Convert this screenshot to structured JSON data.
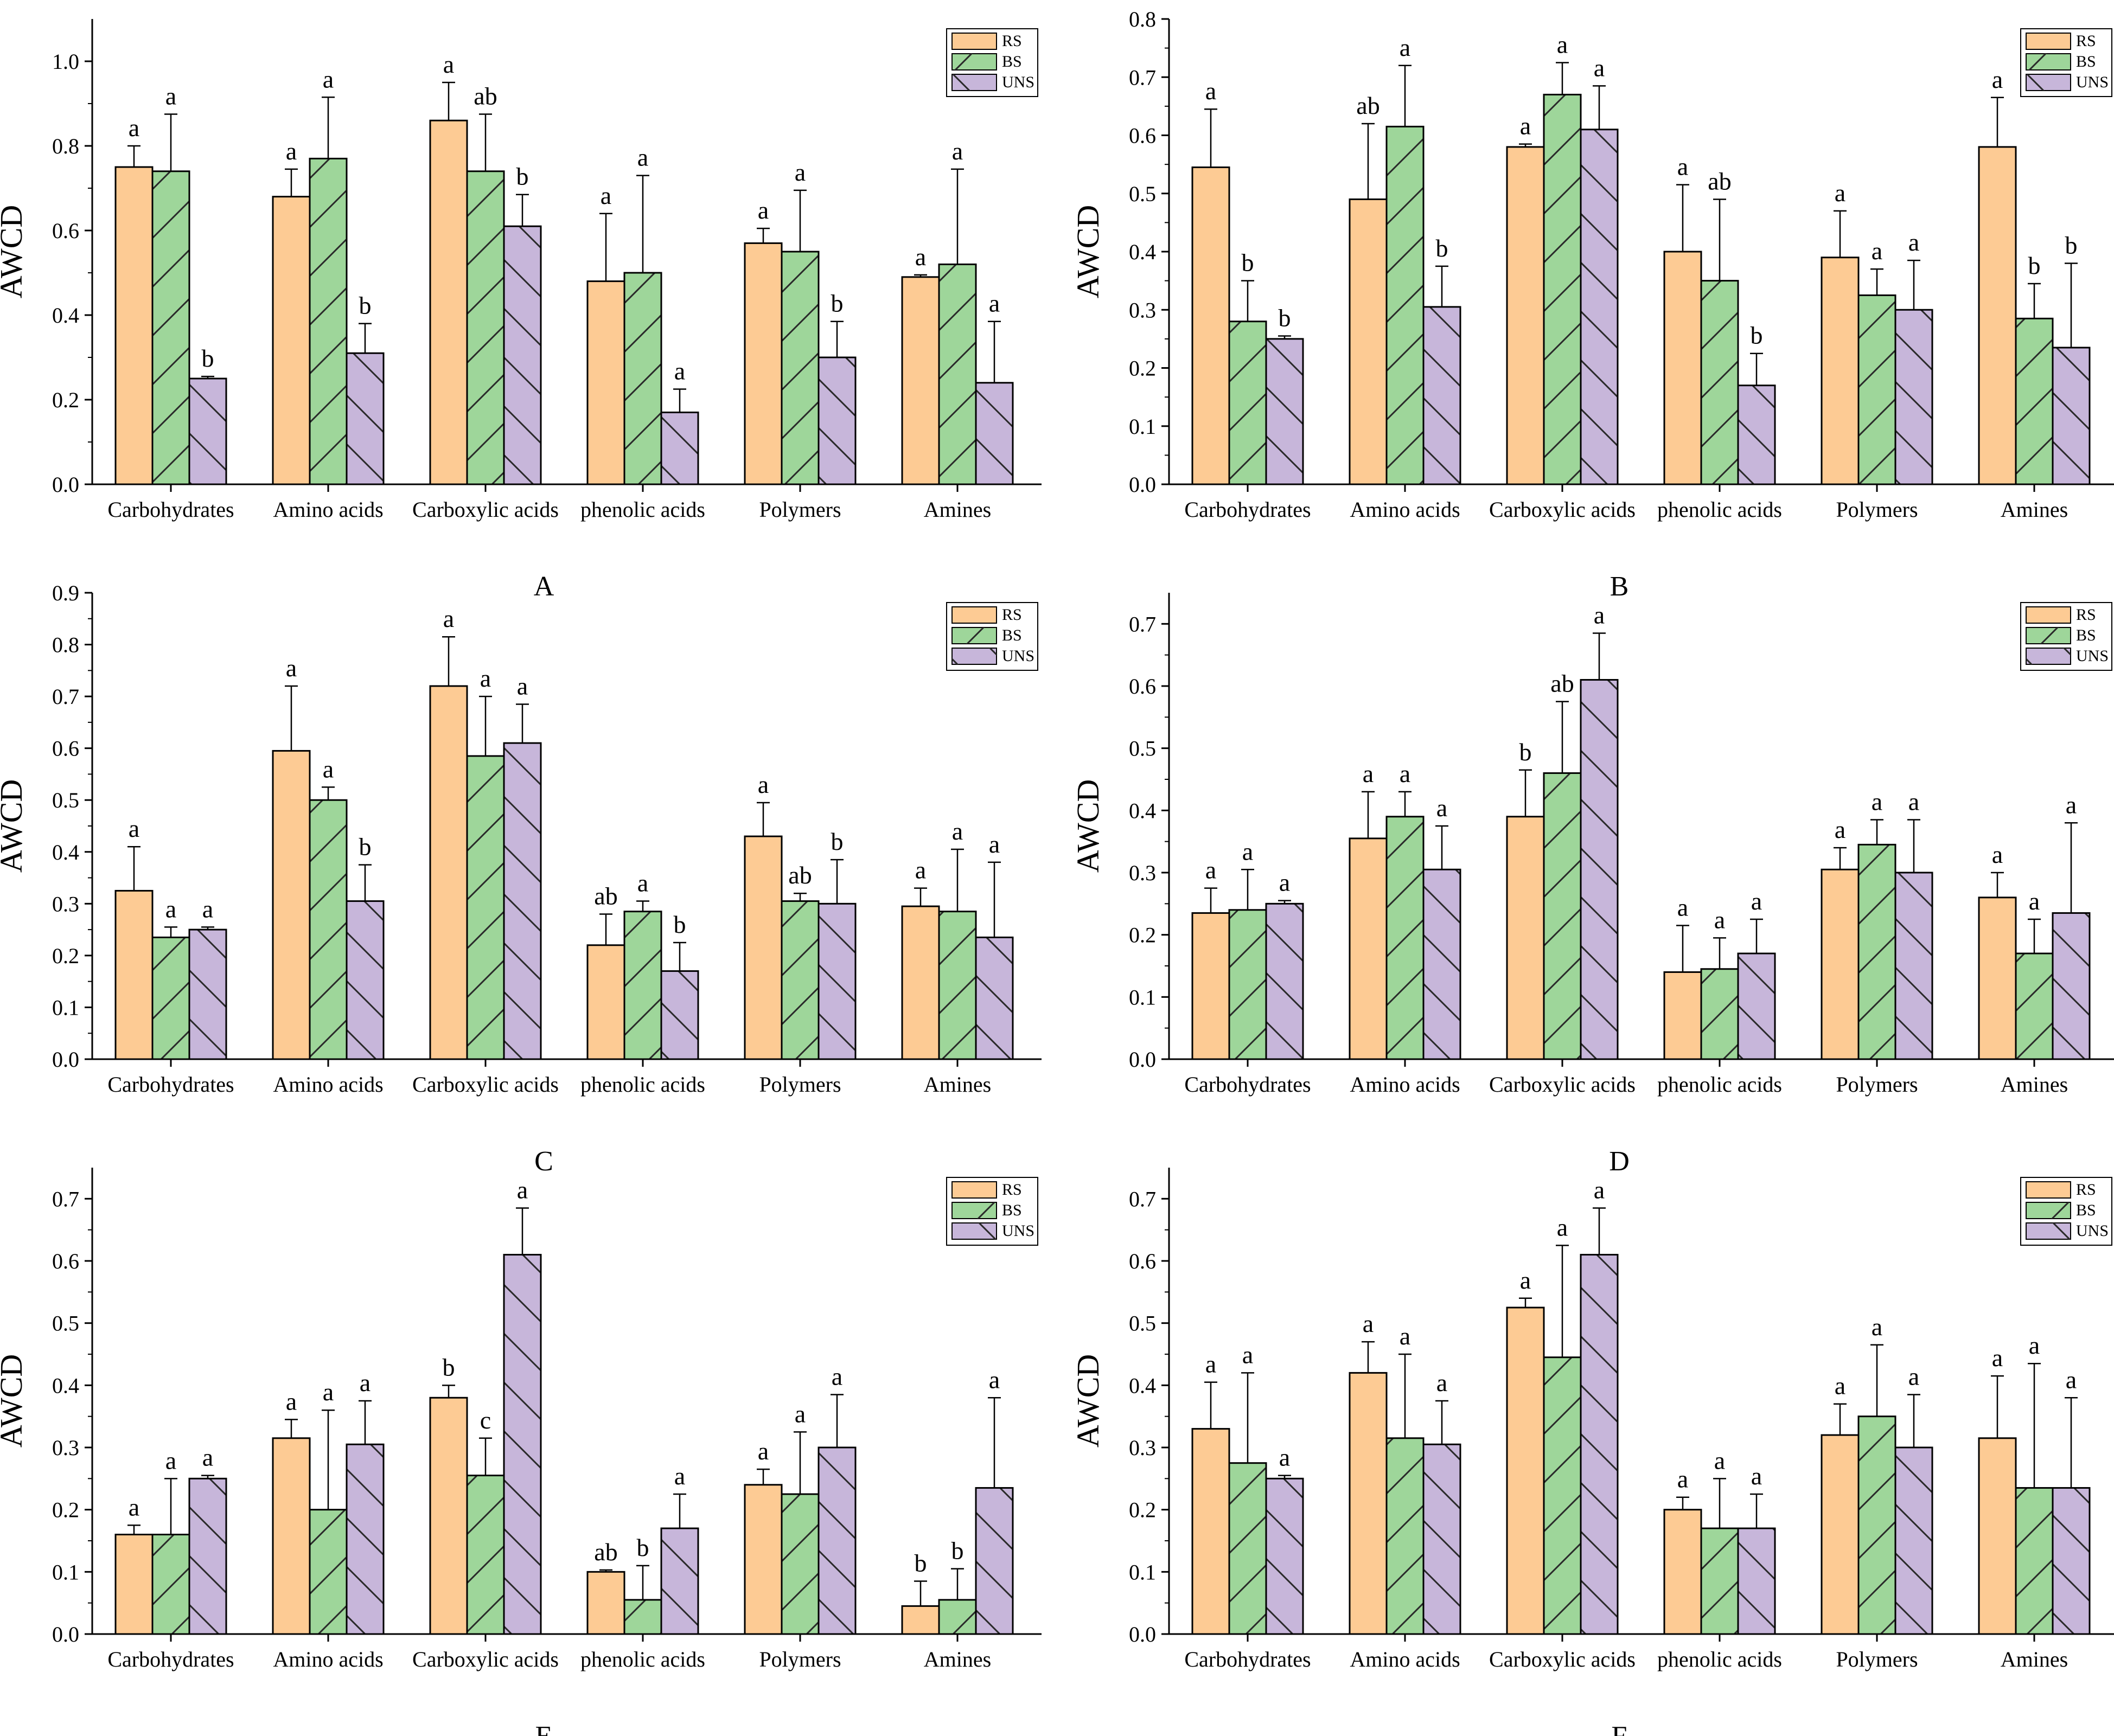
{
  "figure": {
    "series_colors": {
      "RS": "#fdcb94",
      "BS": "#9ed69a",
      "UNS": "#c7b6da"
    },
    "pattern_hint": [
      "none",
      "forward-diagonal",
      "backward-diagonal"
    ]
  },
  "chart_data": [
    {
      "type": "bar",
      "panel_label": "A",
      "ylabel": "AWCD",
      "xlabel": "",
      "categories": [
        "Carbohydrates",
        "Amino acids",
        "Carboxylic acids",
        "phenolic acids",
        "Polymers",
        "Amines"
      ],
      "ylim": [
        0,
        1.1
      ],
      "yticks": [
        "0.0",
        "0.2",
        "0.4",
        "0.6",
        "0.8",
        "1.0"
      ],
      "ytick_values": [
        0,
        0.2,
        0.4,
        0.6,
        0.8,
        1.0
      ],
      "legend_position": "top-right",
      "series": [
        {
          "name": "RS",
          "values": [
            0.75,
            0.68,
            0.86,
            0.48,
            0.57,
            0.49
          ],
          "errors": [
            0.05,
            0.065,
            0.09,
            0.16,
            0.035,
            0.005
          ],
          "letters": [
            "a",
            "a",
            "a",
            "a",
            "a",
            "a"
          ]
        },
        {
          "name": "BS",
          "values": [
            0.74,
            0.77,
            0.74,
            0.5,
            0.55,
            0.52
          ],
          "errors": [
            0.135,
            0.145,
            0.135,
            0.23,
            0.145,
            0.225
          ],
          "letters": [
            "a",
            "a",
            "ab",
            "a",
            "a",
            "a"
          ]
        },
        {
          "name": "UNS",
          "values": [
            0.25,
            0.31,
            0.61,
            0.17,
            0.3,
            0.24
          ],
          "errors": [
            0.005,
            0.07,
            0.075,
            0.055,
            0.085,
            0.145
          ],
          "letters": [
            "b",
            "b",
            "b",
            "a",
            "b",
            "a"
          ]
        }
      ]
    },
    {
      "type": "bar",
      "panel_label": "B",
      "ylabel": "AWCD",
      "xlabel": "",
      "categories": [
        "Carbohydrates",
        "Amino acids",
        "Carboxylic acids",
        "phenolic acids",
        "Polymers",
        "Amines"
      ],
      "ylim": [
        0,
        0.8
      ],
      "yticks": [
        "0.0",
        "0.1",
        "0.2",
        "0.3",
        "0.4",
        "0.5",
        "0.6",
        "0.7",
        "0.8"
      ],
      "ytick_values": [
        0,
        0.1,
        0.2,
        0.3,
        0.4,
        0.5,
        0.6,
        0.7,
        0.8
      ],
      "legend_position": "top-right",
      "series": [
        {
          "name": "RS",
          "values": [
            0.545,
            0.49,
            0.58,
            0.4,
            0.39,
            0.58
          ],
          "errors": [
            0.1,
            0.13,
            0.005,
            0.115,
            0.08,
            0.085
          ],
          "letters": [
            "a",
            "ab",
            "a",
            "a",
            "a",
            "a"
          ]
        },
        {
          "name": "BS",
          "values": [
            0.28,
            0.615,
            0.67,
            0.35,
            0.325,
            0.285
          ],
          "errors": [
            0.07,
            0.105,
            0.055,
            0.14,
            0.045,
            0.06
          ],
          "letters": [
            "b",
            "a",
            "a",
            "ab",
            "a",
            "b"
          ]
        },
        {
          "name": "UNS",
          "values": [
            0.25,
            0.305,
            0.61,
            0.17,
            0.3,
            0.235
          ],
          "errors": [
            0.005,
            0.07,
            0.075,
            0.055,
            0.085,
            0.145
          ],
          "letters": [
            "b",
            "b",
            "a",
            "b",
            "a",
            "b"
          ]
        }
      ]
    },
    {
      "type": "bar",
      "panel_label": "C",
      "ylabel": "AWCD",
      "xlabel": "",
      "categories": [
        "Carbohydrates",
        "Amino acids",
        "Carboxylic acids",
        "phenolic acids",
        "Polymers",
        "Amines"
      ],
      "ylim": [
        0,
        0.9
      ],
      "yticks": [
        "0.0",
        "0.1",
        "0.2",
        "0.3",
        "0.4",
        "0.5",
        "0.6",
        "0.7",
        "0.8",
        "0.9"
      ],
      "ytick_values": [
        0,
        0.1,
        0.2,
        0.3,
        0.4,
        0.5,
        0.6,
        0.7,
        0.8,
        0.9
      ],
      "legend_position": "top-right",
      "series": [
        {
          "name": "RS",
          "values": [
            0.325,
            0.595,
            0.72,
            0.22,
            0.43,
            0.295
          ],
          "errors": [
            0.085,
            0.125,
            0.095,
            0.06,
            0.065,
            0.035
          ],
          "letters": [
            "a",
            "a",
            "a",
            "ab",
            "a",
            "a"
          ]
        },
        {
          "name": "BS",
          "values": [
            0.235,
            0.5,
            0.585,
            0.285,
            0.305,
            0.285
          ],
          "errors": [
            0.02,
            0.025,
            0.115,
            0.02,
            0.015,
            0.12
          ],
          "letters": [
            "a",
            "a",
            "a",
            "a",
            "ab",
            "a"
          ]
        },
        {
          "name": "UNS",
          "values": [
            0.25,
            0.305,
            0.61,
            0.17,
            0.3,
            0.235
          ],
          "errors": [
            0.005,
            0.07,
            0.075,
            0.055,
            0.085,
            0.145
          ],
          "letters": [
            "a",
            "b",
            "a",
            "b",
            "b",
            "a"
          ]
        }
      ]
    },
    {
      "type": "bar",
      "panel_label": "D",
      "ylabel": "AWCD",
      "xlabel": "",
      "categories": [
        "Carbohydrates",
        "Amino acids",
        "Carboxylic acids",
        "phenolic acids",
        "Polymers",
        "Amines"
      ],
      "ylim": [
        0,
        0.75
      ],
      "yticks": [
        "0.0",
        "0.1",
        "0.2",
        "0.3",
        "0.4",
        "0.5",
        "0.6",
        "0.7"
      ],
      "ytick_values": [
        0,
        0.1,
        0.2,
        0.3,
        0.4,
        0.5,
        0.6,
        0.7
      ],
      "legend_position": "top-right",
      "series": [
        {
          "name": "RS",
          "values": [
            0.235,
            0.355,
            0.39,
            0.14,
            0.305,
            0.26
          ],
          "errors": [
            0.04,
            0.075,
            0.075,
            0.075,
            0.035,
            0.04
          ],
          "letters": [
            "a",
            "a",
            "b",
            "a",
            "a",
            "a"
          ]
        },
        {
          "name": "BS",
          "values": [
            0.24,
            0.39,
            0.46,
            0.145,
            0.345,
            0.17
          ],
          "errors": [
            0.065,
            0.04,
            0.115,
            0.05,
            0.04,
            0.055
          ],
          "letters": [
            "a",
            "a",
            "ab",
            "a",
            "a",
            "a"
          ]
        },
        {
          "name": "UNS",
          "values": [
            0.25,
            0.305,
            0.61,
            0.17,
            0.3,
            0.235
          ],
          "errors": [
            0.005,
            0.07,
            0.075,
            0.055,
            0.085,
            0.145
          ],
          "letters": [
            "a",
            "a",
            "a",
            "a",
            "a",
            "a"
          ]
        }
      ]
    },
    {
      "type": "bar",
      "panel_label": "E",
      "ylabel": "AWCD",
      "xlabel": "",
      "categories": [
        "Carbohydrates",
        "Amino acids",
        "Carboxylic acids",
        "phenolic acids",
        "Polymers",
        "Amines"
      ],
      "ylim": [
        0,
        0.75
      ],
      "yticks": [
        "0.0",
        "0.1",
        "0.2",
        "0.3",
        "0.4",
        "0.5",
        "0.6",
        "0.7"
      ],
      "ytick_values": [
        0,
        0.1,
        0.2,
        0.3,
        0.4,
        0.5,
        0.6,
        0.7
      ],
      "legend_position": "top-right",
      "series": [
        {
          "name": "RS",
          "values": [
            0.16,
            0.315,
            0.38,
            0.1,
            0.24,
            0.045
          ],
          "errors": [
            0.015,
            0.03,
            0.02,
            0.003,
            0.025,
            0.04
          ],
          "letters": [
            "a",
            "a",
            "b",
            "ab",
            "a",
            "b"
          ]
        },
        {
          "name": "BS",
          "values": [
            0.16,
            0.2,
            0.255,
            0.055,
            0.225,
            0.055
          ],
          "errors": [
            0.09,
            0.16,
            0.06,
            0.055,
            0.1,
            0.05
          ],
          "letters": [
            "a",
            "a",
            "c",
            "b",
            "a",
            "b"
          ]
        },
        {
          "name": "UNS",
          "values": [
            0.25,
            0.305,
            0.61,
            0.17,
            0.3,
            0.235
          ],
          "errors": [
            0.005,
            0.07,
            0.075,
            0.055,
            0.085,
            0.145
          ],
          "letters": [
            "a",
            "a",
            "a",
            "a",
            "a",
            "a"
          ]
        }
      ]
    },
    {
      "type": "bar",
      "panel_label": "F",
      "ylabel": "AWCD",
      "xlabel": "",
      "categories": [
        "Carbohydrates",
        "Amino acids",
        "Carboxylic acids",
        "phenolic acids",
        "Polymers",
        "Amines"
      ],
      "ylim": [
        0,
        0.75
      ],
      "yticks": [
        "0.0",
        "0.1",
        "0.2",
        "0.3",
        "0.4",
        "0.5",
        "0.6",
        "0.7"
      ],
      "ytick_values": [
        0,
        0.1,
        0.2,
        0.3,
        0.4,
        0.5,
        0.6,
        0.7
      ],
      "legend_position": "top-right",
      "series": [
        {
          "name": "RS",
          "values": [
            0.33,
            0.42,
            0.525,
            0.2,
            0.32,
            0.315
          ],
          "errors": [
            0.075,
            0.05,
            0.015,
            0.02,
            0.05,
            0.1
          ],
          "letters": [
            "a",
            "a",
            "a",
            "a",
            "a",
            "a"
          ]
        },
        {
          "name": "BS",
          "values": [
            0.275,
            0.315,
            0.445,
            0.17,
            0.35,
            0.235
          ],
          "errors": [
            0.145,
            0.135,
            0.18,
            0.08,
            0.115,
            0.2
          ],
          "letters": [
            "a",
            "a",
            "a",
            "a",
            "a",
            "a"
          ]
        },
        {
          "name": "UNS",
          "values": [
            0.25,
            0.305,
            0.61,
            0.17,
            0.3,
            0.235
          ],
          "errors": [
            0.005,
            0.07,
            0.075,
            0.055,
            0.085,
            0.145
          ],
          "letters": [
            "a",
            "a",
            "a",
            "a",
            "a",
            "a"
          ]
        }
      ]
    }
  ]
}
